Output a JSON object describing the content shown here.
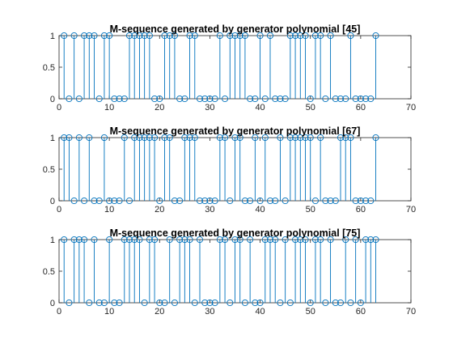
{
  "chart_data": [
    {
      "type": "stem",
      "title": "M-sequence generated by generator polynomial [45]",
      "xlim": [
        0,
        70
      ],
      "ylim": [
        0,
        1
      ],
      "xticks": [
        0,
        10,
        20,
        30,
        40,
        50,
        60,
        70
      ],
      "yticks": [
        0,
        0.5,
        1
      ],
      "xtick_labels": [
        "0",
        "10",
        "20",
        "30",
        "40",
        "50",
        "60",
        "70"
      ],
      "ytick_labels": [
        "0",
        "0.5",
        "1"
      ],
      "grid": false,
      "color": "#0072BD",
      "x": [
        1,
        2,
        3,
        4,
        5,
        6,
        7,
        8,
        9,
        10,
        11,
        12,
        13,
        14,
        15,
        16,
        17,
        18,
        19,
        20,
        21,
        22,
        23,
        24,
        25,
        26,
        27,
        28,
        29,
        30,
        31,
        32,
        33,
        34,
        35,
        36,
        37,
        38,
        39,
        40,
        41,
        42,
        43,
        44,
        45,
        46,
        47,
        48,
        49,
        50,
        51,
        52,
        53,
        54,
        55,
        56,
        57,
        58,
        59,
        60,
        61,
        62,
        63
      ],
      "values": [
        1,
        0,
        1,
        0,
        1,
        1,
        1,
        0,
        1,
        1,
        0,
        0,
        0,
        1,
        1,
        1,
        1,
        1,
        0,
        0,
        1,
        1,
        1,
        0,
        0,
        1,
        1,
        0,
        0,
        0,
        0,
        1,
        0,
        1,
        1,
        1,
        1,
        0,
        0,
        1,
        0,
        1,
        0,
        0,
        0,
        1,
        1,
        1,
        1,
        0,
        1,
        1,
        0,
        1,
        0,
        0,
        0,
        1,
        0,
        0,
        0,
        0,
        1
      ]
    },
    {
      "type": "stem",
      "title": "M-sequence generated by generator polynomial [67]",
      "xlim": [
        0,
        70
      ],
      "ylim": [
        0,
        1
      ],
      "xticks": [
        0,
        10,
        20,
        30,
        40,
        50,
        60,
        70
      ],
      "yticks": [
        0,
        0.5,
        1
      ],
      "xtick_labels": [
        "0",
        "10",
        "20",
        "30",
        "40",
        "50",
        "60",
        "70"
      ],
      "ytick_labels": [
        "0",
        "0.5",
        "1"
      ],
      "grid": false,
      "color": "#0072BD",
      "x": [
        1,
        2,
        3,
        4,
        5,
        6,
        7,
        8,
        9,
        10,
        11,
        12,
        13,
        14,
        15,
        16,
        17,
        18,
        19,
        20,
        21,
        22,
        23,
        24,
        25,
        26,
        27,
        28,
        29,
        30,
        31,
        32,
        33,
        34,
        35,
        36,
        37,
        38,
        39,
        40,
        41,
        42,
        43,
        44,
        45,
        46,
        47,
        48,
        49,
        50,
        51,
        52,
        53,
        54,
        55,
        56,
        57,
        58,
        59,
        60,
        61,
        62,
        63
      ],
      "values": [
        1,
        1,
        0,
        1,
        0,
        1,
        0,
        0,
        1,
        0,
        0,
        0,
        1,
        0,
        1,
        1,
        1,
        1,
        1,
        0,
        1,
        1,
        0,
        0,
        1,
        1,
        1,
        0,
        0,
        0,
        0,
        1,
        1,
        0,
        1,
        1,
        0,
        0,
        1,
        0,
        1,
        0,
        0,
        1,
        0,
        1,
        1,
        1,
        1,
        1,
        0,
        1,
        0,
        0,
        0,
        1,
        1,
        1,
        0,
        0,
        0,
        0,
        1
      ]
    },
    {
      "type": "stem",
      "title": "M-sequence generated by generator polynomial [75]",
      "xlim": [
        0,
        70
      ],
      "ylim": [
        0,
        1
      ],
      "xticks": [
        0,
        10,
        20,
        30,
        40,
        50,
        60,
        70
      ],
      "yticks": [
        0,
        0.5,
        1
      ],
      "xtick_labels": [
        "0",
        "10",
        "20",
        "30",
        "40",
        "50",
        "60",
        "70"
      ],
      "ytick_labels": [
        "0",
        "0.5",
        "1"
      ],
      "grid": false,
      "color": "#0072BD",
      "x": [
        1,
        2,
        3,
        4,
        5,
        6,
        7,
        8,
        9,
        10,
        11,
        12,
        13,
        14,
        15,
        16,
        17,
        18,
        19,
        20,
        21,
        22,
        23,
        24,
        25,
        26,
        27,
        28,
        29,
        30,
        31,
        32,
        33,
        34,
        35,
        36,
        37,
        38,
        39,
        40,
        41,
        42,
        43,
        44,
        45,
        46,
        47,
        48,
        49,
        50,
        51,
        52,
        53,
        54,
        55,
        56,
        57,
        58,
        59,
        60,
        61,
        62,
        63
      ],
      "values": [
        1,
        0,
        1,
        1,
        1,
        0,
        1,
        0,
        0,
        1,
        0,
        0,
        1,
        1,
        1,
        1,
        0,
        1,
        1,
        0,
        0,
        1,
        0,
        1,
        1,
        1,
        0,
        1,
        0,
        0,
        0,
        1,
        1,
        0,
        1,
        1,
        0,
        1,
        0,
        0,
        1,
        1,
        1,
        0,
        1,
        0,
        1,
        1,
        1,
        0,
        1,
        1,
        0,
        1,
        0,
        0,
        1,
        0,
        1,
        0,
        1,
        1,
        1
      ]
    }
  ]
}
